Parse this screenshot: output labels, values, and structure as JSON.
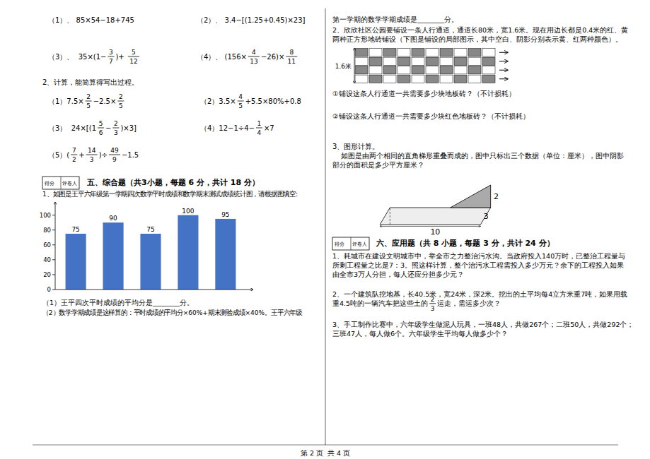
{
  "chart_data": {
    "type": "bar",
    "categories": [
      null,
      null,
      null,
      null,
      null
    ],
    "values": [
      75,
      90,
      75,
      100,
      95
    ],
    "color": "#4472c4",
    "ylim": [
      0,
      112
    ],
    "yticks": [
      0,
      20,
      40,
      60,
      80,
      100
    ],
    "data_labels": true,
    "tick_labels": "y",
    "grid": false
  },
  "page": {
    "background": "#ffffff",
    "footer": "第 2 页  共 4 页",
    "lines": [
      [
        "（1）、 85×54−18+745"
      ],
      [
        "（2）、 3.4−[(1.25+0.45)×23]"
      ],
      [
        "（3）、  35×(1−",
        {
          "num": "3",
          "den": "7"
        },
        ")+ ",
        {
          "num": "5",
          "den": "12"
        }
      ],
      [
        "（4）、 (156×",
        {
          "num": "4",
          "den": "13"
        },
        "−26)×",
        {
          "num": "8",
          "den": "11"
        }
      ],
      [
        "2、计算，能简算得写出过程。"
      ],
      [
        "（1）7.5×",
        {
          "num": "2",
          "den": "5"
        },
        "−2.5×",
        {
          "num": "2",
          "den": "5"
        }
      ],
      [
        "（2）3.5×",
        {
          "num": "4",
          "den": "5"
        },
        "+5.5×80%+0.8"
      ],
      [
        "（3）  24×[(1",
        {
          "num": "5",
          "den": "6"
        },
        "−",
        {
          "num": "2",
          "den": "3"
        },
        ")×3]"
      ],
      [
        "（4）12−1÷4−",
        {
          "num": "1",
          "den": "4"
        },
        "×7"
      ],
      [
        "（5）(",
        {
          "num": "7",
          "den": "2"
        },
        "+",
        {
          "num": "14",
          "den": "3"
        },
        ")÷",
        {
          "num": "49",
          "den": "9"
        },
        "−1.5"
      ],
      [
        "1、如图是王平六年级第一学期四次数学平时成绩和数学期末测试成绩统计图，请根据图填空:"
      ],
      [
        "（1）王平四次平时成绩的平均分是________分。"
      ],
      [
        "（2）数学学期成绩是这样算的：平时成绩的平均分×60%+期末测验成绩×40%。王平六年级"
      ],
      [
        "第一学期的数学学期成绩是________分。"
      ],
      [
        "2、欣欣社区公园要铺设一条人行通道，通道长80米，宽1.6米。现在用边长都是0.4米的红、黄"
      ],
      [
        "两种正方形地砖铺设（下图是铺设的局部图示，其中空白、阴影分别表示黄、红两种颜色）。"
      ],
      [
        "①铺设这条人行通道一共需要多少块地板砖？（不计损耗）"
      ],
      [
        "②铺设这条人行通道一共需要多少块红色地板砖？（不计损耗）"
      ],
      [
        "3、图形计算。"
      ],
      [
        "    如图是由两个相同的直角梯形重叠而成的，图中只标出三个数据（单位：厘米），图中阴影"
      ],
      [
        "部分的面积是多少平方厘米？"
      ],
      [
        "1、耗城市在建设文明城市中，举全市之力整治污水沟。当政府投入140万时，已整治工程量与"
      ],
      [
        "所剩工程量之比是7：3。照这样计算，整个治污水工程需投入多少万元？余下的工程投入如果"
      ],
      [
        "由全市3万人分担，每人还应分担多少元？"
      ],
      [
        "2、一个建筑队挖地基，长40.5米，宽24米，深2米。挖出的土平均每4立方米重7吨，如果用载"
      ],
      [
        "重4.5吨的一辆汽车把这些土的",
        {
          "num": "2",
          "den": "3"
        },
        "运走，需运多少次？"
      ],
      [
        "3、手工制作比赛中，六年级学生做泥人玩具，一班48人，共做267个；二班50人，共做292个；"
      ],
      [
        "三班47人，每人做6个。六年级学生平均每人做多少个？"
      ]
    ],
    "sections": [
      {
        "score": "得分",
        "grader": "评卷人",
        "title": "五、综合题（共3小题，每题 6 分，共计 18 分）"
      },
      {
        "score": "得分",
        "grader": "评卷人",
        "title": "六、应用题（共 8 小题，每题 3 分，共计 24 分）"
      }
    ],
    "tile_label": "1.6米",
    "trapezoid_labels": [
      "2",
      "3",
      "10"
    ]
  }
}
